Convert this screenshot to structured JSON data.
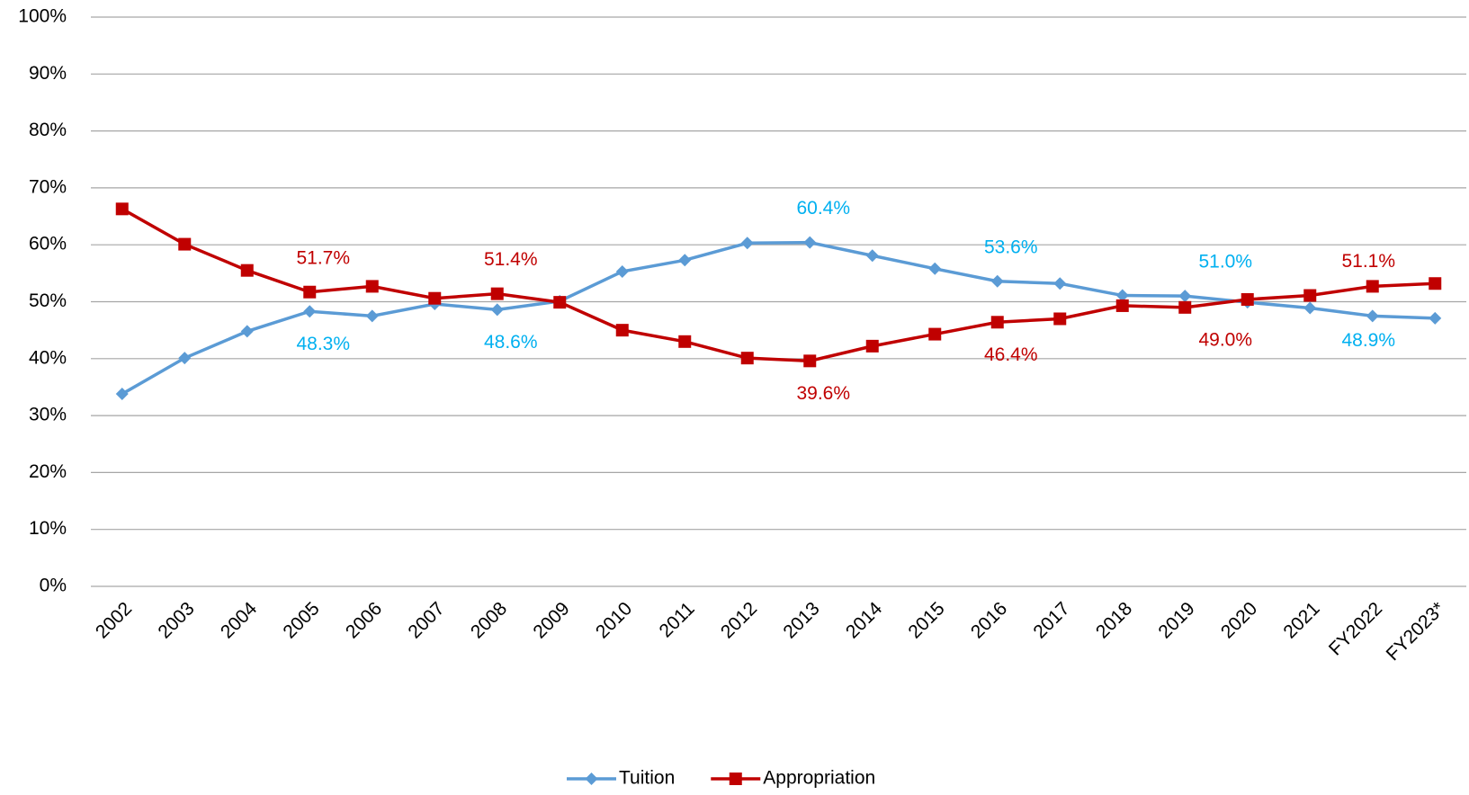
{
  "chart_data": {
    "type": "line",
    "categories": [
      "2002",
      "2003",
      "2004",
      "2005",
      "2006",
      "2007",
      "2008",
      "2009",
      "2010",
      "2011",
      "2012",
      "2013",
      "2014",
      "2015",
      "2016",
      "2017",
      "2018",
      "2019",
      "2020",
      "2021",
      "FY2022",
      "FY2023*"
    ],
    "series": [
      {
        "name": "Tuition",
        "color": "#5b9bd5",
        "label_color": "#00b0f0",
        "marker": "diamond",
        "values": [
          33.8,
          40.1,
          44.8,
          48.3,
          47.5,
          49.6,
          48.6,
          50.1,
          55.3,
          57.3,
          60.3,
          60.4,
          58.1,
          55.8,
          53.6,
          53.2,
          51.1,
          51.0,
          49.9,
          48.9,
          47.5,
          47.1
        ],
        "value_labels": [
          null,
          null,
          null,
          "48.3%",
          null,
          null,
          "48.6%",
          null,
          null,
          null,
          null,
          "60.4%",
          null,
          null,
          "53.6%",
          null,
          null,
          "51.0%",
          null,
          "48.9%",
          null,
          null
        ]
      },
      {
        "name": "Appropriation",
        "color": "#c00000",
        "label_color": "#c00000",
        "marker": "square",
        "values": [
          66.3,
          60.1,
          55.5,
          51.7,
          52.7,
          50.6,
          51.4,
          49.9,
          45.0,
          43.0,
          40.1,
          39.6,
          42.2,
          44.3,
          46.4,
          47.0,
          49.3,
          49.0,
          50.4,
          51.1,
          52.7,
          53.2
        ],
        "value_labels": [
          null,
          null,
          null,
          "51.7%",
          null,
          null,
          "51.4%",
          null,
          null,
          null,
          null,
          "39.6%",
          null,
          null,
          "46.4%",
          null,
          null,
          "49.0%",
          null,
          "51.1%",
          null,
          null
        ]
      }
    ],
    "ylim": [
      0,
      100
    ],
    "yticks": [
      {
        "value": 0,
        "label": "0%"
      },
      {
        "value": 10,
        "label": "10%"
      },
      {
        "value": 20,
        "label": "20%"
      },
      {
        "value": 30,
        "label": "30%"
      },
      {
        "value": 40,
        "label": "40%"
      },
      {
        "value": 50,
        "label": "50%"
      },
      {
        "value": 60,
        "label": "60%"
      },
      {
        "value": 70,
        "label": "70%"
      },
      {
        "value": 80,
        "label": "80%"
      },
      {
        "value": 90,
        "label": "90%"
      },
      {
        "value": 100,
        "label": "100%"
      }
    ],
    "grid": true,
    "legend": "bottom"
  }
}
